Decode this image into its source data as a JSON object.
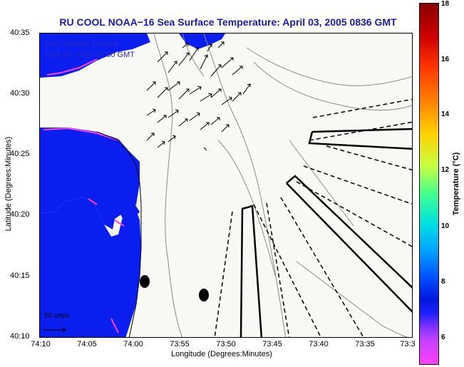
{
  "title": "RU COOL  NOAA−16  Sea Surface Temperature:  April 03, 2005 0836 GMT",
  "legend": {
    "line1": "Raw Surface Current",
    "line2": "April 03, 2005 09:00 GMT"
  },
  "axes": {
    "xlabel": "Longitude (Degrees:Minutes)",
    "ylabel": "Latitude (Degrees:Minutes)",
    "xticks": [
      "74:10",
      "74:05",
      "74:00",
      "73:55",
      "73:50",
      "73:45",
      "73:40",
      "73:35",
      "73:3"
    ],
    "yticks": [
      "40:35",
      "40:30",
      "40:25",
      "40:20",
      "40:15",
      "40:10"
    ]
  },
  "scale_arrow_label": "50 cm/s",
  "colorbar": {
    "label": "Temperature (°C)",
    "ticks": [
      "18",
      "16",
      "14",
      "12",
      "10",
      "8",
      "6"
    ]
  },
  "colors": {
    "land": "#0a1ef0",
    "title": "#1a1aa8",
    "legend": "#2a2ab8",
    "coast_highlight": "#ff40ff"
  }
}
